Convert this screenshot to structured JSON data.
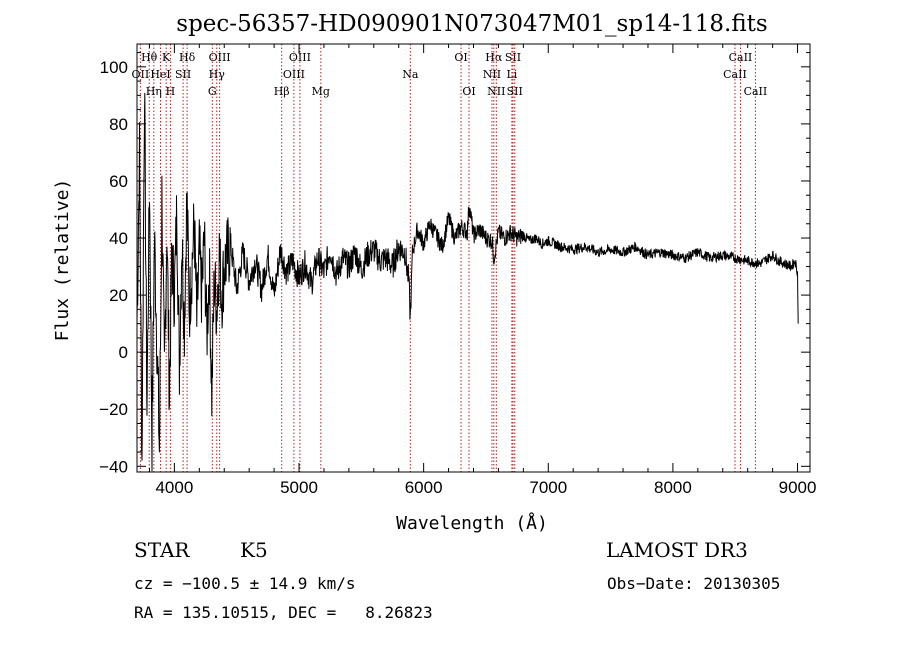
{
  "chart_data": {
    "type": "line",
    "title": "spec-56357-HD090901N073047M01_sp14-118.fits",
    "xlabel": "Wavelength (Å)",
    "ylabel": "Flux (relative)",
    "xlim": [
      3700,
      9100
    ],
    "ylim": [
      -42,
      108
    ],
    "x_ticks": [
      4000,
      5000,
      6000,
      7000,
      8000,
      9000
    ],
    "y_ticks": [
      -40,
      -20,
      0,
      20,
      40,
      60,
      80,
      100
    ],
    "series": [
      {
        "name": "flux",
        "x": [
          3700,
          3720,
          3740,
          3760,
          3780,
          3800,
          3820,
          3840,
          3860,
          3880,
          3900,
          3920,
          3940,
          3960,
          3980,
          4000,
          4020,
          4040,
          4060,
          4080,
          4100,
          4120,
          4140,
          4160,
          4180,
          4200,
          4220,
          4240,
          4260,
          4280,
          4300,
          4320,
          4340,
          4360,
          4380,
          4400,
          4450,
          4500,
          4550,
          4600,
          4650,
          4700,
          4750,
          4800,
          4850,
          4900,
          4950,
          5000,
          5050,
          5100,
          5150,
          5200,
          5250,
          5300,
          5350,
          5400,
          5450,
          5500,
          5550,
          5600,
          5650,
          5700,
          5750,
          5800,
          5850,
          5880,
          5893,
          5910,
          5950,
          6000,
          6050,
          6100,
          6150,
          6200,
          6250,
          6300,
          6350,
          6365,
          6400,
          6450,
          6500,
          6550,
          6563,
          6600,
          6650,
          6700,
          6750,
          6800,
          6850,
          6900,
          6950,
          7000,
          7100,
          7200,
          7300,
          7400,
          7500,
          7600,
          7700,
          7800,
          7900,
          8000,
          8100,
          8200,
          8300,
          8400,
          8500,
          8600,
          8700,
          8800,
          8850,
          8900,
          8950,
          8980,
          9000,
          9005
        ],
        "values": [
          10,
          70,
          -38,
          95,
          -20,
          60,
          -30,
          40,
          5,
          -35,
          55,
          -10,
          45,
          -15,
          35,
          20,
          50,
          -5,
          40,
          10,
          55,
          15,
          30,
          45,
          10,
          35,
          20,
          40,
          5,
          30,
          -15,
          25,
          15,
          35,
          20,
          30,
          38,
          22,
          35,
          25,
          32,
          22,
          34,
          20,
          36,
          28,
          32,
          26,
          31,
          24,
          33,
          28,
          36,
          27,
          33,
          30,
          35,
          29,
          34,
          36,
          32,
          33,
          30,
          37,
          35,
          25,
          12,
          35,
          43,
          38,
          45,
          41,
          37,
          47,
          40,
          44,
          42,
          52,
          41,
          43,
          40,
          39,
          33,
          42,
          40,
          42,
          40,
          41,
          39,
          40,
          38,
          39,
          37,
          36,
          37,
          35,
          36,
          35,
          37,
          34,
          35,
          34,
          33,
          35,
          33,
          34,
          33,
          32,
          31,
          34,
          32,
          31,
          30,
          32,
          28,
          10
        ]
      }
    ],
    "spectral_lines": [
      {
        "label": "Hθ",
        "x": 3798,
        "row": 0
      },
      {
        "label": "K",
        "x": 3934,
        "row": 0
      },
      {
        "label": "Hδ",
        "x": 4102,
        "row": 0
      },
      {
        "label": "OIII",
        "x": 4363,
        "row": 0
      },
      {
        "label": "OIII",
        "x": 5007,
        "row": 0
      },
      {
        "label": "OI",
        "x": 6300,
        "row": 0
      },
      {
        "label": "Hα",
        "x": 6563,
        "row": 0
      },
      {
        "label": "SII",
        "x": 6717,
        "row": 0
      },
      {
        "label": "CaII",
        "x": 8542,
        "row": 0
      },
      {
        "label": "OII",
        "x": 3727,
        "row": 1
      },
      {
        "label": "HeI",
        "x": 3889,
        "row": 1
      },
      {
        "label": "SII",
        "x": 4070,
        "row": 1
      },
      {
        "label": "Hγ",
        "x": 4340,
        "row": 1
      },
      {
        "label": "OIII",
        "x": 4959,
        "row": 1
      },
      {
        "label": "Na",
        "x": 5893,
        "row": 1
      },
      {
        "label": "NII",
        "x": 6548,
        "row": 1
      },
      {
        "label": "Li",
        "x": 6708,
        "row": 1
      },
      {
        "label": "CaII",
        "x": 8498,
        "row": 1
      },
      {
        "label": "Hη",
        "x": 3835,
        "row": 2
      },
      {
        "label": "H",
        "x": 3968,
        "row": 2
      },
      {
        "label": "G",
        "x": 4304,
        "row": 2
      },
      {
        "label": "Hβ",
        "x": 4861,
        "row": 2
      },
      {
        "label": "Mg",
        "x": 5175,
        "row": 2
      },
      {
        "label": "OI",
        "x": 6364,
        "row": 2
      },
      {
        "label": "NII",
        "x": 6583,
        "row": 2
      },
      {
        "label": "SII",
        "x": 6731,
        "row": 2
      },
      {
        "label": "CaII",
        "x": 8662,
        "row": 2
      }
    ]
  },
  "info": {
    "object_class": "STAR",
    "subclass": "K5",
    "survey": "LAMOST DR3",
    "cz": "cz = −100.5 ± 14.9 km/s",
    "obs_date": "Obs−Date: 20130305",
    "coords": "RA = 135.10515, DEC =   8.26823"
  },
  "colors": {
    "line_marker": "#b22222",
    "spectrum": "#000000",
    "axes": "#000000"
  }
}
